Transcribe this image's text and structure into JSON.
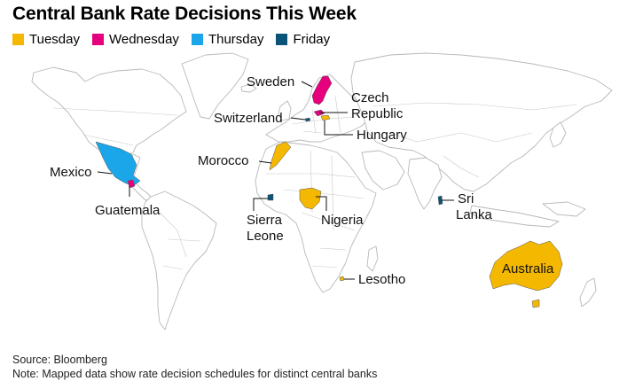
{
  "title": "Central Bank Rate Decisions This Week",
  "legend": [
    {
      "label": "Tuesday",
      "color": "#f5b800"
    },
    {
      "label": "Wednesday",
      "color": "#e6007e"
    },
    {
      "label": "Thursday",
      "color": "#1aa6e8"
    },
    {
      "label": "Friday",
      "color": "#0a5478"
    }
  ],
  "countries": {
    "sweden": {
      "label": "Sweden",
      "day": "Wednesday"
    },
    "czech": {
      "label1": "Czech",
      "label2": "Republic",
      "day": "Wednesday"
    },
    "switzerland": {
      "label": "Switzerland",
      "day": "Friday"
    },
    "hungary": {
      "label": "Hungary",
      "day": "Tuesday"
    },
    "morocco": {
      "label": "Morocco",
      "day": "Tuesday"
    },
    "mexico": {
      "label": "Mexico",
      "day": "Thursday"
    },
    "guatemala": {
      "label": "Guatemala",
      "day": "Wednesday"
    },
    "sierra_leone": {
      "label1": "Sierra",
      "label2": "Leone",
      "day": "Friday"
    },
    "nigeria": {
      "label": "Nigeria",
      "day": "Tuesday"
    },
    "sri_lanka": {
      "label1": "Sri",
      "label2": "Lanka",
      "day": "Friday"
    },
    "australia": {
      "label": "Australia",
      "day": "Tuesday"
    },
    "lesotho": {
      "label": "Lesotho",
      "day": "Tuesday"
    }
  },
  "footer": {
    "source": "Source: Bloomberg",
    "note": "Note: Mapped data show rate decision schedules for distinct central banks"
  }
}
